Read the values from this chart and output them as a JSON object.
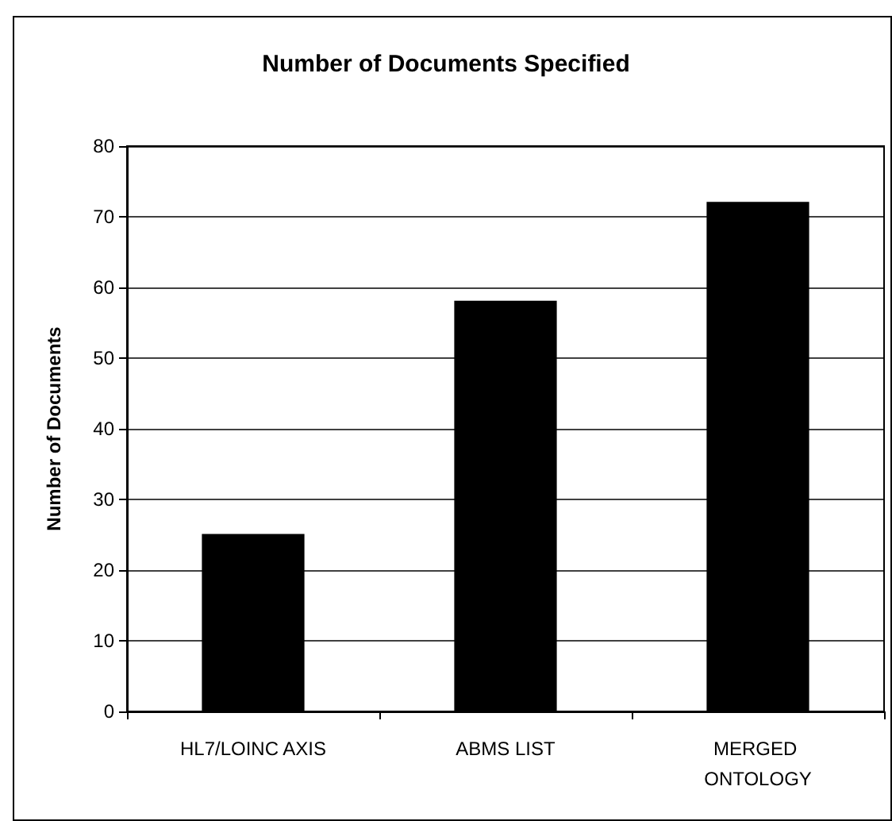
{
  "chart_data": {
    "type": "bar",
    "title": "Number of Documents Specified",
    "ylabel": "Number of Documents",
    "categories": [
      "HL7/LOINC AXIS",
      "ABMS LIST",
      "MERGED ONTOLOGY"
    ],
    "values": [
      25,
      58,
      72
    ],
    "color": "#000000",
    "ylim": [
      0,
      80
    ],
    "yticks": [
      0,
      10,
      20,
      30,
      40,
      50,
      60,
      70,
      80
    ],
    "grid": "y"
  }
}
